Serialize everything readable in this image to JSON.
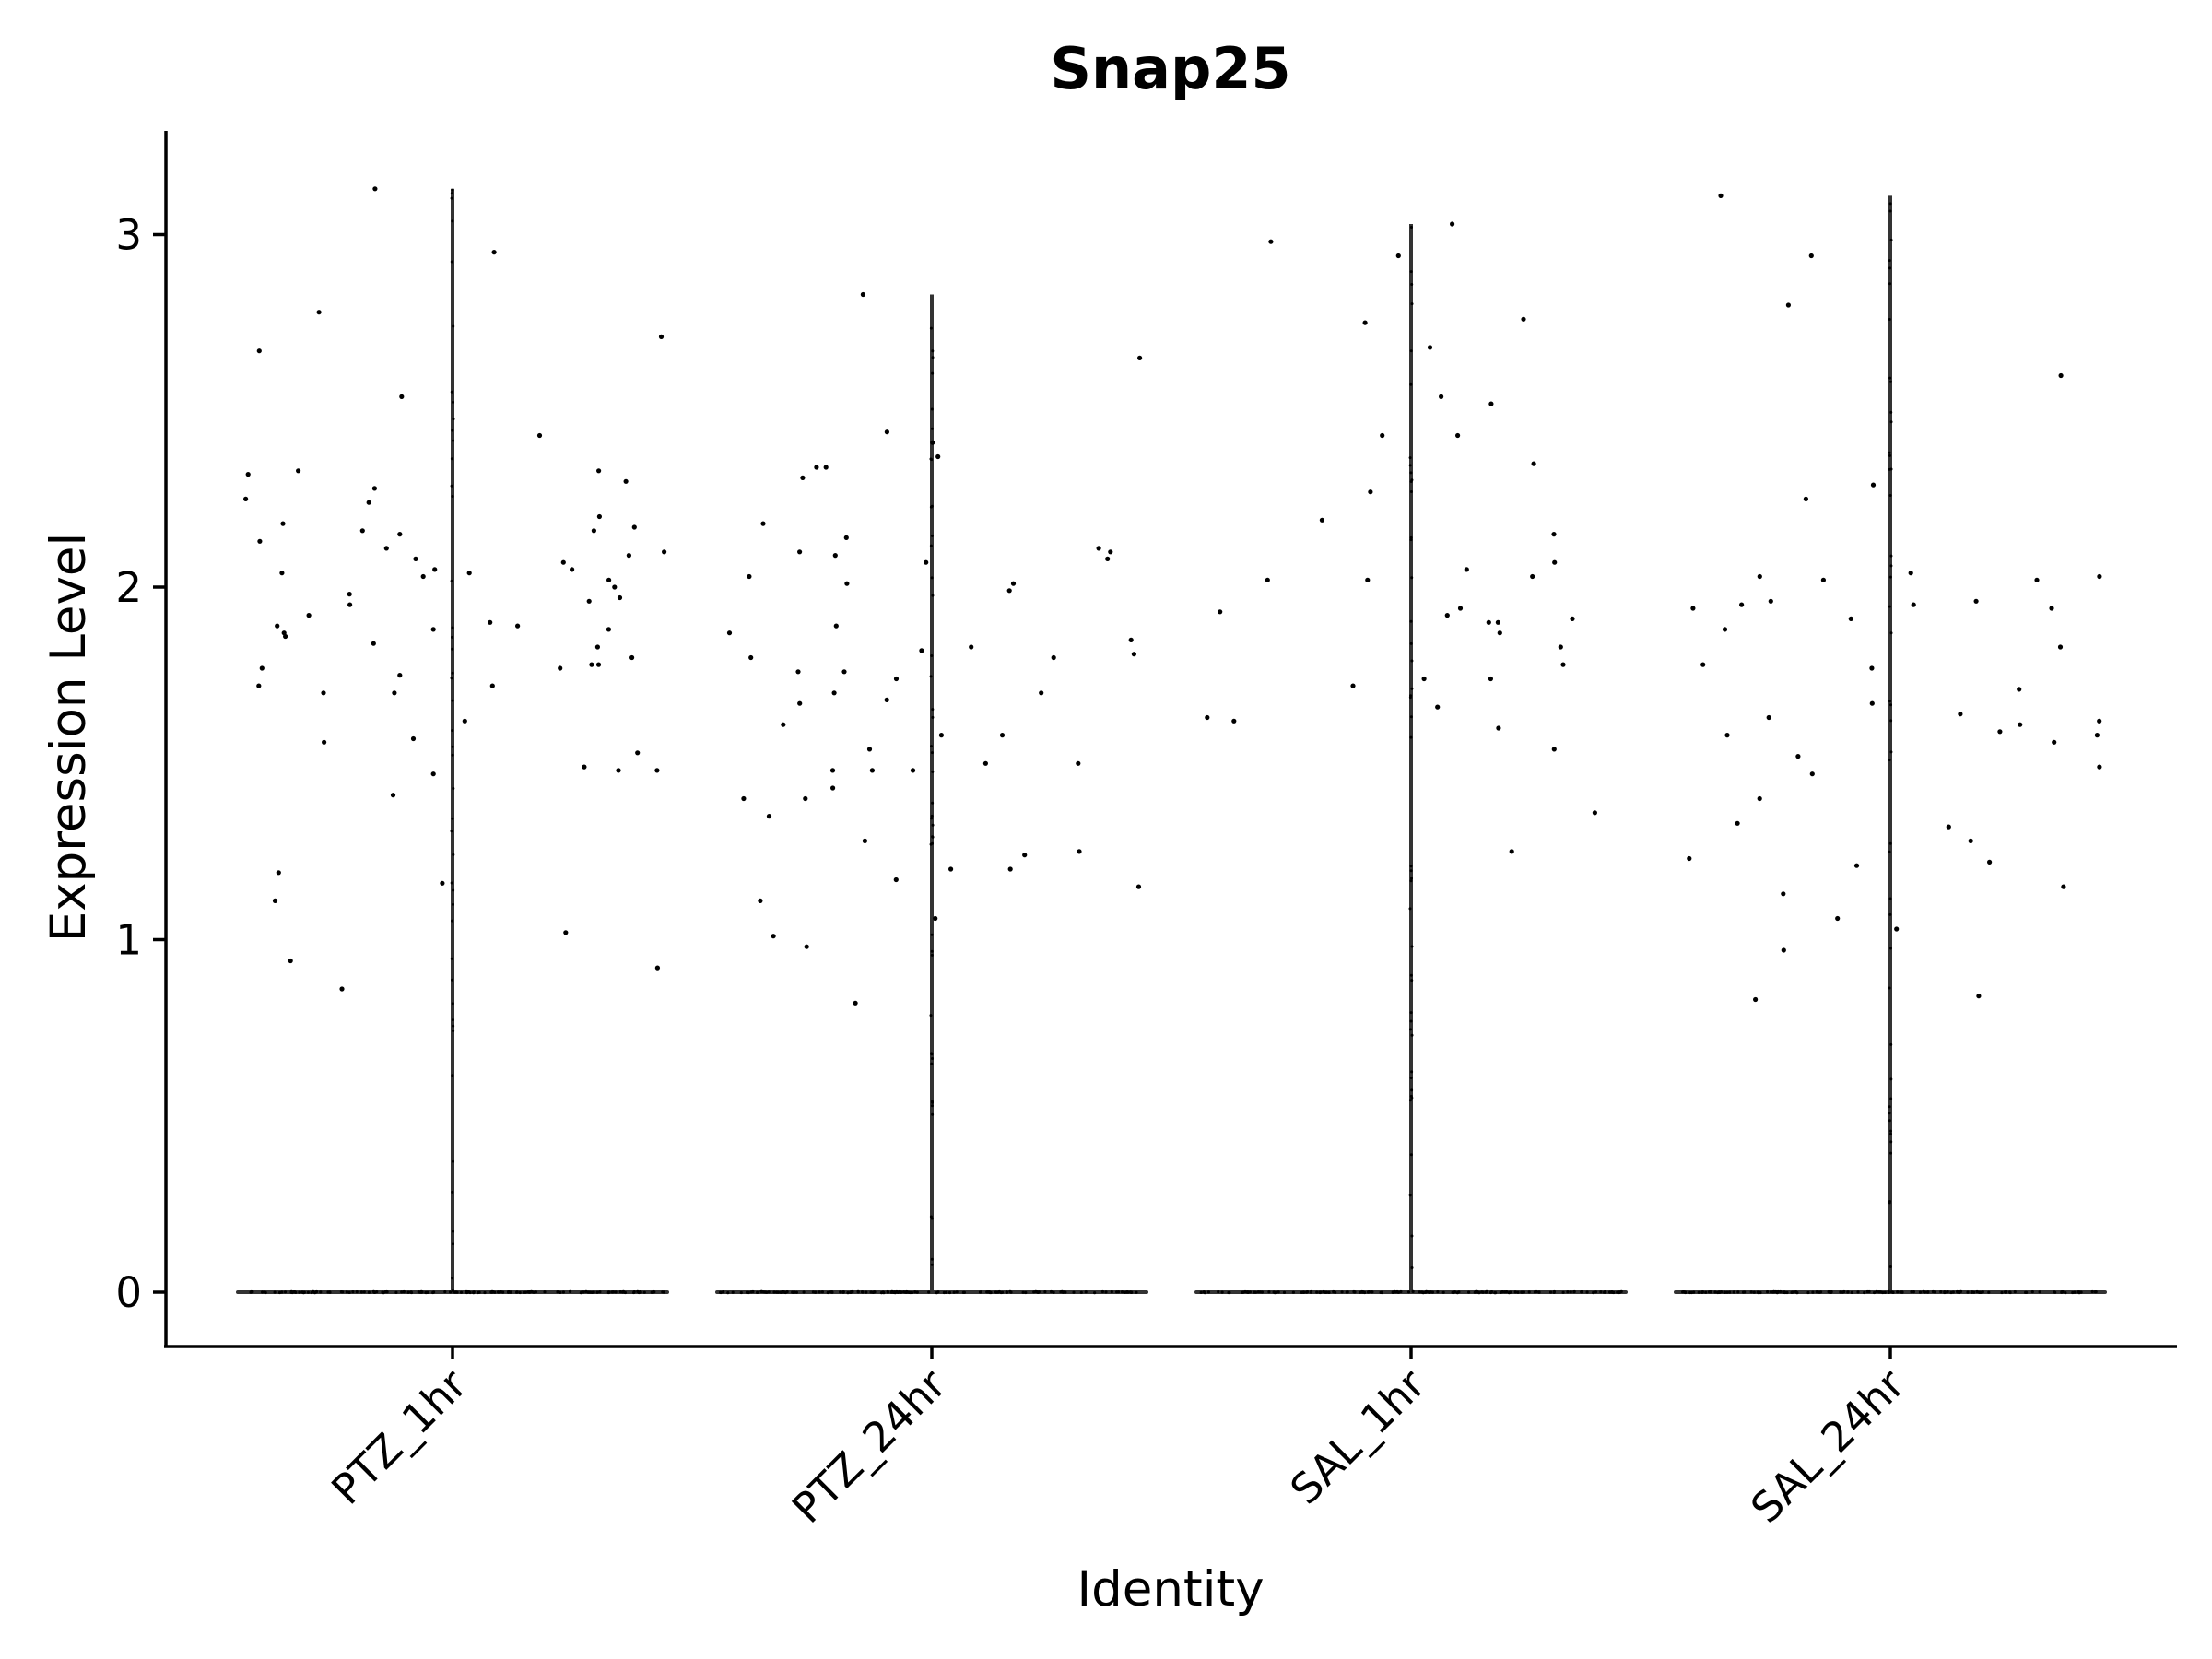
{
  "chart_data": {
    "type": "violin",
    "title": "Snap25",
    "xlabel": "Identity",
    "ylabel": "Expression Level",
    "categories": [
      "PTZ_1hr",
      "PTZ_24hr",
      "SAL_1hr",
      "SAL_24hr"
    ],
    "yticks": [
      0,
      1,
      2,
      3
    ],
    "ylim": [
      -0.15,
      3.3
    ],
    "line_color": "#333333",
    "point_color": "#000000",
    "series": [
      {
        "category": "PTZ_1hr",
        "max": 3.13,
        "points": [
          3.13,
          2.95,
          2.78,
          2.71,
          2.67,
          2.54,
          2.43,
          2.33,
          2.33,
          2.32,
          2.3,
          2.28,
          2.25,
          2.24,
          2.2,
          2.18,
          2.17,
          2.16,
          2.16,
          2.15,
          2.13,
          2.11,
          2.1,
          2.09,
          2.08,
          2.07,
          2.05,
          2.05,
          2.04,
          2.04,
          2.03,
          2.02,
          2.0,
          1.98,
          1.97,
          1.96,
          1.95,
          1.92,
          1.9,
          1.89,
          1.89,
          1.88,
          1.88,
          1.87,
          1.86,
          1.84,
          1.83,
          1.8,
          1.78,
          1.78,
          1.77,
          1.77,
          1.75,
          1.72,
          1.72,
          1.7,
          1.7,
          1.62,
          1.57,
          1.56,
          1.53,
          1.49,
          1.48,
          1.48,
          1.47,
          1.41,
          1.19,
          1.16,
          1.11,
          1.02,
          0.94,
          0.92,
          0.86
        ]
      },
      {
        "category": "PTZ_24hr",
        "max": 2.83,
        "points": [
          2.83,
          2.65,
          2.44,
          2.41,
          2.37,
          2.34,
          2.34,
          2.31,
          2.18,
          2.14,
          2.11,
          2.1,
          2.1,
          2.09,
          2.08,
          2.07,
          2.03,
          2.01,
          2.01,
          1.99,
          1.89,
          1.87,
          1.85,
          1.83,
          1.82,
          1.81,
          1.8,
          1.8,
          1.76,
          1.76,
          1.74,
          1.7,
          1.7,
          1.68,
          1.67,
          1.61,
          1.58,
          1.58,
          1.54,
          1.5,
          1.5,
          1.48,
          1.48,
          1.48,
          1.43,
          1.4,
          1.4,
          1.35,
          1.28,
          1.25,
          1.24,
          1.2,
          1.2,
          1.17,
          1.15,
          1.11,
          1.06,
          1.01,
          0.98,
          0.82
        ]
      },
      {
        "category": "SAL_1hr",
        "max": 3.03,
        "points": [
          3.03,
          2.98,
          2.94,
          2.76,
          2.75,
          2.68,
          2.54,
          2.52,
          2.43,
          2.43,
          2.35,
          2.27,
          2.19,
          2.15,
          2.07,
          2.05,
          2.03,
          2.02,
          2.02,
          1.94,
          1.93,
          1.92,
          1.91,
          1.9,
          1.9,
          1.87,
          1.83,
          1.78,
          1.74,
          1.74,
          1.72,
          1.66,
          1.63,
          1.62,
          1.6,
          1.54,
          1.36,
          1.25
        ]
      },
      {
        "category": "SAL_24hr",
        "max": 3.11,
        "points": [
          3.11,
          2.94,
          2.8,
          2.6,
          2.29,
          2.25,
          2.04,
          2.03,
          2.03,
          2.02,
          2.02,
          1.96,
          1.96,
          1.95,
          1.95,
          1.94,
          1.94,
          1.91,
          1.88,
          1.83,
          1.78,
          1.77,
          1.71,
          1.67,
          1.64,
          1.63,
          1.62,
          1.61,
          1.59,
          1.58,
          1.58,
          1.56,
          1.52,
          1.49,
          1.47,
          1.4,
          1.33,
          1.32,
          1.28,
          1.23,
          1.22,
          1.21,
          1.15,
          1.13,
          1.06,
          1.03,
          0.97,
          0.84,
          0.83
        ]
      }
    ]
  }
}
